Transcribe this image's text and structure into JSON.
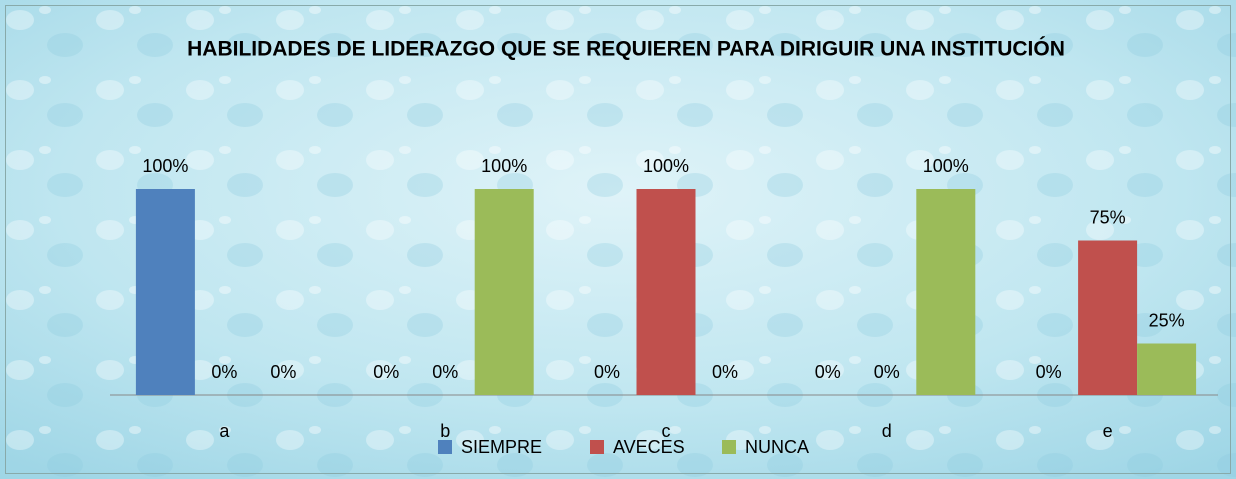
{
  "chart_data": {
    "type": "bar",
    "title": "HABILIDADES DE LIDERAZGO QUE SE REQUIEREN PARA DIRIGUIR UNA INSTITUCIÓN",
    "categories": [
      "a",
      "b",
      "c",
      "d",
      "e"
    ],
    "series": [
      {
        "name": "SIEMPRE",
        "color": "#4f81bd",
        "values": [
          100,
          0,
          0,
          0,
          0
        ],
        "value_labels": [
          "100%",
          "0%",
          "0%",
          "0%",
          "0%"
        ]
      },
      {
        "name": "AVECES",
        "color": "#c0504d",
        "values": [
          0,
          0,
          100,
          0,
          75
        ],
        "value_labels": [
          "0%",
          "0%",
          "100%",
          "0%",
          "75%"
        ]
      },
      {
        "name": "NUNCA",
        "color": "#9bbb59",
        "values": [
          0,
          100,
          0,
          100,
          25
        ],
        "value_labels": [
          "0%",
          "100%",
          "0%",
          "100%",
          "25%"
        ]
      }
    ],
    "ylim": [
      0,
      100
    ],
    "legend": "bottom"
  }
}
